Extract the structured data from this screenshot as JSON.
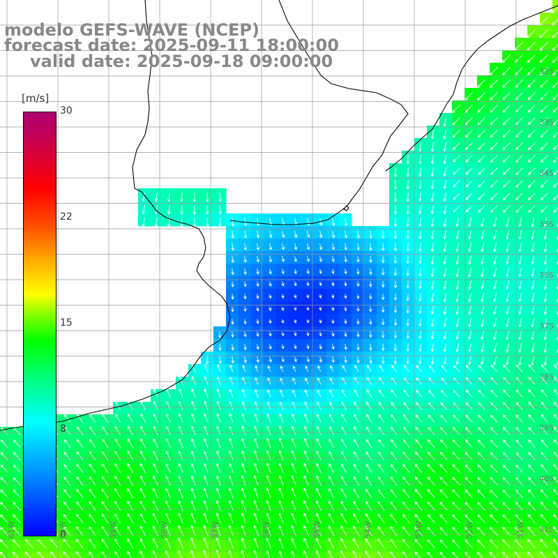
{
  "title": {
    "line1": "modelo GEFS-WAVE (NCEP)",
    "line2": "forecast date: 2025-09-11 18:00:00",
    "line3": "valid date: 2025-09-18 09:00:00"
  },
  "colorbar": {
    "unit": "[m/s]",
    "ticks": [
      "30",
      "22",
      "15",
      "8",
      "0"
    ],
    "colors": [
      "#0000ff",
      "#0080ff",
      "#00ffff",
      "#00ff80",
      "#00ff00",
      "#ffff00",
      "#ff0000",
      "#b00070"
    ]
  },
  "map": {
    "variable": "wind speed",
    "lon_labels": [
      "61W",
      "60W",
      "59W",
      "58W",
      "57W",
      "56W",
      "55W",
      "54W",
      "53W",
      "52W",
      "51W"
    ],
    "lat_labels": [
      "32S",
      "33S",
      "34S",
      "35S",
      "36S",
      "37S",
      "38S",
      "39S",
      "40S",
      "41S"
    ],
    "land_color": "#ffffff",
    "grid_color": "#999999",
    "coast_color": "#000000",
    "arrow_color": "#ffffff"
  }
}
